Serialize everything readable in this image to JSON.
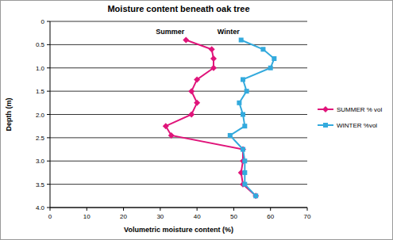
{
  "chart_data": {
    "type": "line",
    "title": "Moisture content beneath oak tree",
    "x_label": "Volumetric moisture content (%)",
    "y_label": "Depth (m)",
    "xlim": [
      0,
      70
    ],
    "xticks": [
      0,
      10,
      20,
      30,
      40,
      50,
      60,
      70
    ],
    "ylim": [
      4,
      0
    ],
    "yticks": [
      0,
      0.5,
      {
        "value": 1,
        "label": "1.0"
      },
      1.5,
      {
        "value": 2,
        "label": "2.0"
      },
      2.5,
      {
        "value": 3,
        "label": "3.0"
      },
      3.5,
      {
        "value": 4,
        "label": "4.0"
      }
    ],
    "grid": true,
    "legend": "right",
    "annotations": [
      "Summer",
      "Winter"
    ],
    "series": [
      {
        "name": "SUMMER % vol",
        "color": "#e0147a",
        "marker": "diamond",
        "line_style": "solid",
        "x": [
          37,
          44,
          44.5,
          44.5,
          40,
          38.5,
          40,
          38.5,
          31.5,
          33,
          52.5,
          52.5,
          52,
          52.5,
          56
        ],
        "values": [
          0.4,
          0.6,
          0.8,
          1.0,
          1.25,
          1.5,
          1.75,
          2.0,
          2.25,
          2.45,
          2.75,
          3.0,
          3.25,
          3.5,
          3.75
        ]
      },
      {
        "name": "WINTER %vol",
        "color": "#33aadd",
        "marker": "square",
        "line_style": "solid",
        "x": [
          52,
          58,
          61,
          60,
          52.5,
          53.5,
          51.5,
          52.5,
          53,
          49,
          52.5,
          53,
          53,
          53,
          56
        ],
        "values": [
          0.4,
          0.6,
          0.8,
          1.0,
          1.25,
          1.5,
          1.75,
          2.0,
          2.25,
          2.45,
          2.75,
          3.0,
          3.25,
          3.5,
          3.75
        ]
      }
    ]
  }
}
